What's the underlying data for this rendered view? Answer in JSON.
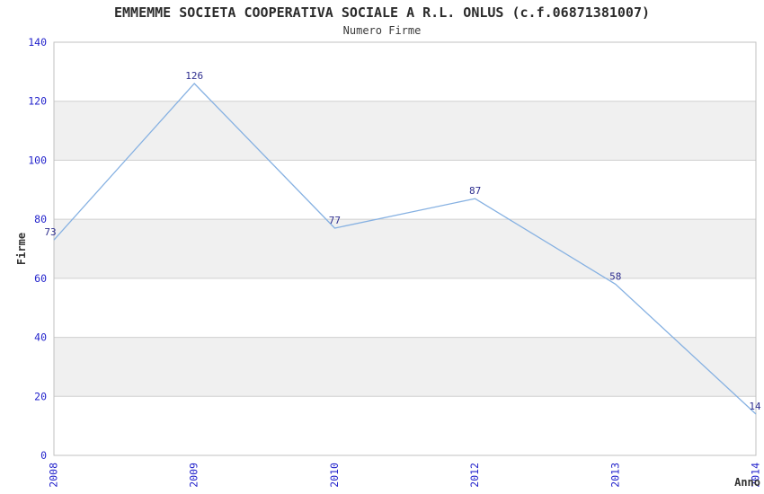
{
  "page": {
    "background": "#ffffff"
  },
  "chart_data": {
    "type": "line",
    "title": "EMMEMME SOCIETA COOPERATIVA SOCIALE A R.L. ONLUS (c.f.06871381007)",
    "subtitle": "Numero Firme",
    "xlabel": "Anno",
    "ylabel": "Firme",
    "categories": [
      "2008",
      "2009",
      "2010",
      "2012",
      "2013",
      "2014"
    ],
    "values": [
      73,
      126,
      77,
      87,
      58,
      14
    ],
    "ylim": [
      0,
      140
    ],
    "ytick_step": 20,
    "yticks": [
      0,
      20,
      40,
      60,
      80,
      100,
      120,
      140
    ],
    "grid": "horizontal-bands",
    "legend": "none",
    "colors": {
      "line": "#86b1e2",
      "tick_labels": "#2424cc",
      "value_labels": "#2e2e8f",
      "axis_titles": "#333333",
      "title": "#2b2b2b",
      "band": "#f0f0f0",
      "gridline": "#cfcfcf",
      "border": "#c0c0c0",
      "background": "#ffffff"
    }
  }
}
